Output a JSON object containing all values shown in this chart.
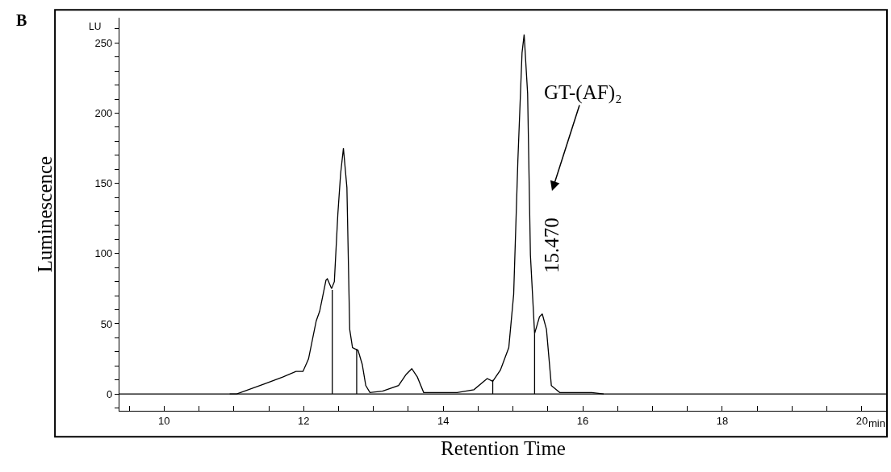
{
  "chart_data": {
    "type": "line",
    "xlabel": "Retention Time",
    "ylabel": "Luminescence",
    "annotations": [
      "B",
      "LU",
      "min",
      "GT-(AF)₂",
      {
        "text": "15.470",
        "x": 15.47,
        "y": 57
      }
    ],
    "series": [
      {
        "color": "#000000",
        "x": [
          10.94,
          11.04,
          11.43,
          11.7,
          11.89,
          11.99,
          12.07,
          12.18,
          12.23,
          12.32,
          12.34,
          12.4,
          12.44,
          12.49,
          12.53,
          12.57,
          12.62,
          12.66,
          12.7,
          12.78,
          12.84,
          12.89,
          12.95,
          13.13,
          13.36,
          13.47,
          13.55,
          13.63,
          13.72,
          13.93,
          14.2,
          14.44,
          14.63,
          14.71,
          14.82,
          14.94,
          15.01,
          15.07,
          15.13,
          15.16,
          15.21,
          15.25,
          15.31,
          15.38,
          15.42,
          15.48,
          15.55,
          15.67,
          15.9,
          16.13,
          16.3
        ],
        "values": [
          0,
          0,
          7,
          12,
          16,
          16,
          25,
          52,
          59,
          81,
          82,
          75,
          80,
          128,
          157,
          175,
          147,
          46,
          33,
          31,
          21,
          6,
          1,
          2,
          6,
          14,
          18,
          12,
          1,
          1,
          1,
          3,
          11,
          9,
          17,
          33,
          71,
          166,
          243,
          256,
          214,
          99,
          43,
          55,
          57,
          46,
          6,
          1,
          1,
          1,
          0
        ]
      },
      {
        "color": "#000000",
        "x": [
          12.41,
          12.41
        ],
        "values": [
          0,
          74
        ]
      },
      {
        "color": "#000000",
        "x": [
          12.76,
          12.76
        ],
        "values": [
          0,
          32
        ]
      },
      {
        "color": "#000000",
        "x": [
          14.71,
          14.71
        ],
        "values": [
          0,
          10
        ]
      },
      {
        "color": "#000000",
        "x": [
          15.31,
          15.31
        ],
        "values": [
          0,
          43
        ]
      }
    ],
    "ref_lines": [
      {
        "axis": "y",
        "value": 0,
        "color": "#000000"
      }
    ],
    "xlim": [
      9.36,
      20.36
    ],
    "ylim": [
      -12,
      268
    ],
    "xticks": [
      {
        "value": 9.5,
        "label": null
      },
      {
        "value": 10,
        "label": "10"
      },
      {
        "value": 10.5,
        "label": null
      },
      {
        "value": 11,
        "label": null
      },
      {
        "value": 11.5,
        "label": null
      },
      {
        "value": 12,
        "label": "12"
      },
      {
        "value": 12.5,
        "label": null
      },
      {
        "value": 13,
        "label": null
      },
      {
        "value": 13.5,
        "label": null
      },
      {
        "value": 14,
        "label": "14"
      },
      {
        "value": 14.5,
        "label": null
      },
      {
        "value": 15,
        "label": null
      },
      {
        "value": 15.5,
        "label": null
      },
      {
        "value": 16,
        "label": "16"
      },
      {
        "value": 16.5,
        "label": null
      },
      {
        "value": 17,
        "label": null
      },
      {
        "value": 17.5,
        "label": null
      },
      {
        "value": 18,
        "label": "18"
      },
      {
        "value": 18.5,
        "label": null
      },
      {
        "value": 19,
        "label": null
      },
      {
        "value": 19.5,
        "label": null
      },
      {
        "value": 20,
        "label": "20"
      }
    ],
    "yticks": [
      {
        "value": -10,
        "label": null
      },
      0,
      {
        "value": 10,
        "label": null
      },
      {
        "value": 20,
        "label": null
      },
      {
        "value": 30,
        "label": null
      },
      {
        "value": 40,
        "label": null
      },
      50,
      {
        "value": 60,
        "label": null
      },
      {
        "value": 70,
        "label": null
      },
      {
        "value": 80,
        "label": null
      },
      {
        "value": 90,
        "label": null
      },
      100,
      {
        "value": 110,
        "label": null
      },
      {
        "value": 120,
        "label": null
      },
      {
        "value": 130,
        "label": null
      },
      {
        "value": 140,
        "label": null
      },
      150,
      {
        "value": 160,
        "label": null
      },
      {
        "value": 170,
        "label": null
      },
      {
        "value": 180,
        "label": null
      },
      {
        "value": 190,
        "label": null
      },
      200,
      {
        "value": 210,
        "label": null
      },
      {
        "value": 220,
        "label": null
      },
      {
        "value": 230,
        "label": null
      },
      {
        "value": 240,
        "label": null
      },
      250,
      {
        "value": 260,
        "label": null
      }
    ],
    "marker": "none",
    "line_style": "solid"
  }
}
